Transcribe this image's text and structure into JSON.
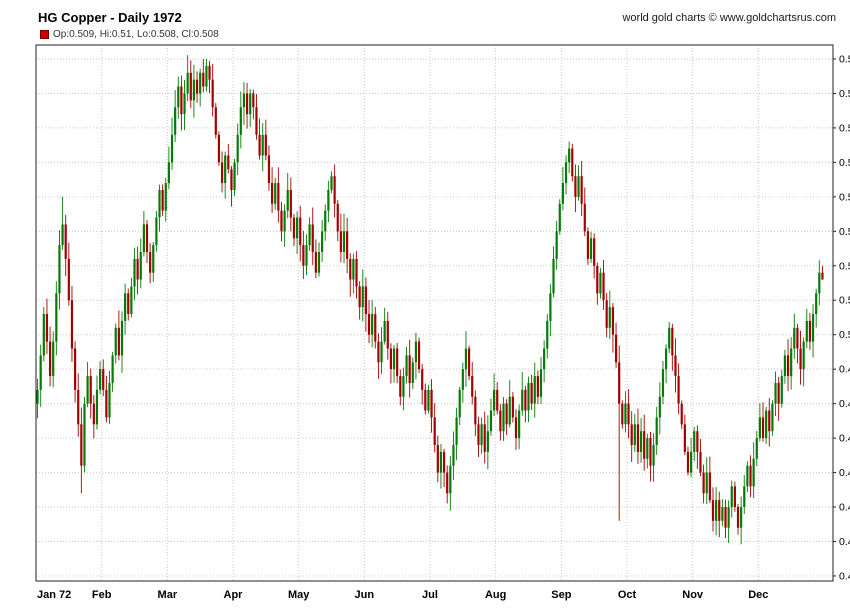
{
  "header": {
    "title": "HG Copper - Daily 1972",
    "watermark": "world gold charts © www.goldchartsrus.com"
  },
  "legend": {
    "text": "Op:0.509, Hi:0.51, Lo:0.508, Cl:0.508",
    "swatch_color": "#cc0000"
  },
  "chart_data": {
    "type": "candlestick",
    "title": "HG Copper - Daily 1972",
    "instrument": "HG Copper",
    "period": "Daily 1972",
    "y_axis": {
      "min": 0.465,
      "max": 0.54,
      "step": 0.005,
      "side": "right",
      "tick_decimals": 3
    },
    "x_axis": {
      "month_labels": [
        "Jan 72",
        "Feb",
        "Mar",
        "Apr",
        "May",
        "Jun",
        "Jul",
        "Aug",
        "Sep",
        "Oct",
        "Nov",
        "Dec"
      ]
    },
    "colors": {
      "up": "#067a06",
      "down": "#a40000",
      "grid": "#c9c9c9",
      "frame": "#222222",
      "text": "#000000"
    },
    "grid": {
      "horizontal": true,
      "vertical": true,
      "style": "dotted"
    },
    "legend_position": "top-left",
    "first_open": 0.49,
    "months": [
      {
        "label": "Jan 72",
        "closes": [
          0.492,
          0.497,
          0.503,
          0.499,
          0.494,
          0.499,
          0.506,
          0.513,
          0.516,
          0.511,
          0.505,
          0.498,
          0.492,
          0.487,
          0.481,
          0.49,
          0.494,
          0.49,
          0.487,
          0.492,
          0.495
        ]
      },
      {
        "label": "Feb",
        "closes": [
          0.492,
          0.488,
          0.493,
          0.497,
          0.501,
          0.497,
          0.502,
          0.506,
          0.503,
          0.507,
          0.511,
          0.508,
          0.512,
          0.516,
          0.512,
          0.509,
          0.513,
          0.517,
          0.521,
          0.518,
          0.522
        ]
      },
      {
        "label": "Mar",
        "closes": [
          0.525,
          0.529,
          0.533,
          0.536,
          0.532,
          0.535,
          0.538,
          0.534,
          0.537,
          0.535,
          0.538,
          0.536,
          0.539,
          0.537,
          0.533,
          0.529,
          0.525,
          0.522,
          0.526,
          0.524,
          0.521
        ]
      },
      {
        "label": "Apr",
        "closes": [
          0.525,
          0.529,
          0.533,
          0.535,
          0.532,
          0.535,
          0.533,
          0.529,
          0.526,
          0.529,
          0.526,
          0.522,
          0.519,
          0.522,
          0.518,
          0.515,
          0.518,
          0.521,
          0.517,
          0.514,
          0.517
        ]
      },
      {
        "label": "May",
        "closes": [
          0.513,
          0.51,
          0.513,
          0.516,
          0.512,
          0.509,
          0.512,
          0.515,
          0.518,
          0.521,
          0.523,
          0.519,
          0.515,
          0.512,
          0.515,
          0.511,
          0.508,
          0.511,
          0.507,
          0.504,
          0.507
        ]
      },
      {
        "label": "Jun",
        "closes": [
          0.503,
          0.5,
          0.503,
          0.499,
          0.496,
          0.499,
          0.502,
          0.498,
          0.495,
          0.498,
          0.494,
          0.491,
          0.494,
          0.497,
          0.493,
          0.496,
          0.499,
          0.495,
          0.492,
          0.489,
          0.492
        ]
      },
      {
        "label": "Jul",
        "closes": [
          0.488,
          0.484,
          0.48,
          0.483,
          0.48,
          0.477,
          0.481,
          0.484,
          0.488,
          0.492,
          0.495,
          0.498,
          0.494,
          0.491,
          0.487,
          0.484,
          0.487,
          0.483,
          0.486,
          0.489,
          0.492
        ]
      },
      {
        "label": "Aug",
        "closes": [
          0.489,
          0.486,
          0.49,
          0.487,
          0.491,
          0.488,
          0.485,
          0.489,
          0.492,
          0.489,
          0.493,
          0.49,
          0.494,
          0.491,
          0.495,
          0.498,
          0.502,
          0.506,
          0.511,
          0.515,
          0.519
        ]
      },
      {
        "label": "Sep",
        "closes": [
          0.522,
          0.525,
          0.527,
          0.523,
          0.52,
          0.523,
          0.519,
          0.515,
          0.511,
          0.514,
          0.51,
          0.506,
          0.509,
          0.505,
          0.501,
          0.504,
          0.5,
          0.496,
          0.49,
          0.487,
          0.49
        ]
      },
      {
        "label": "Oct",
        "closes": [
          0.487,
          0.484,
          0.487,
          0.483,
          0.486,
          0.482,
          0.485,
          0.481,
          0.484,
          0.488,
          0.491,
          0.495,
          0.498,
          0.501,
          0.497,
          0.494,
          0.49,
          0.487,
          0.483,
          0.48,
          0.483
        ]
      },
      {
        "label": "Nov",
        "closes": [
          0.486,
          0.483,
          0.48,
          0.477,
          0.48,
          0.476,
          0.473,
          0.476,
          0.473,
          0.475,
          0.472,
          0.475,
          0.478,
          0.475,
          0.472,
          0.475,
          0.478,
          0.481,
          0.478,
          0.482,
          0.485
        ]
      },
      {
        "label": "Dec",
        "closes": [
          0.488,
          0.485,
          0.489,
          0.486,
          0.49,
          0.493,
          0.49,
          0.494,
          0.497,
          0.494,
          0.498,
          0.501,
          0.498,
          0.495,
          0.499,
          0.502,
          0.499,
          0.503,
          0.506,
          0.509,
          0.508
        ]
      }
    ],
    "wick_overrides": [
      {
        "m": 0,
        "d": 8,
        "high": 0.52
      },
      {
        "m": 0,
        "d": 14,
        "low": 0.477
      },
      {
        "m": 2,
        "d": 12,
        "high": 0.54
      },
      {
        "m": 8,
        "d": 2,
        "high": 0.528
      },
      {
        "m": 8,
        "d": 18,
        "low": 0.473
      },
      {
        "m": 10,
        "d": 10,
        "low": 0.4705
      },
      {
        "m": 10,
        "d": 14,
        "low": 0.471
      }
    ],
    "last_bar_ohlc": {
      "open": 0.509,
      "high": 0.51,
      "low": 0.508,
      "close": 0.508
    }
  }
}
